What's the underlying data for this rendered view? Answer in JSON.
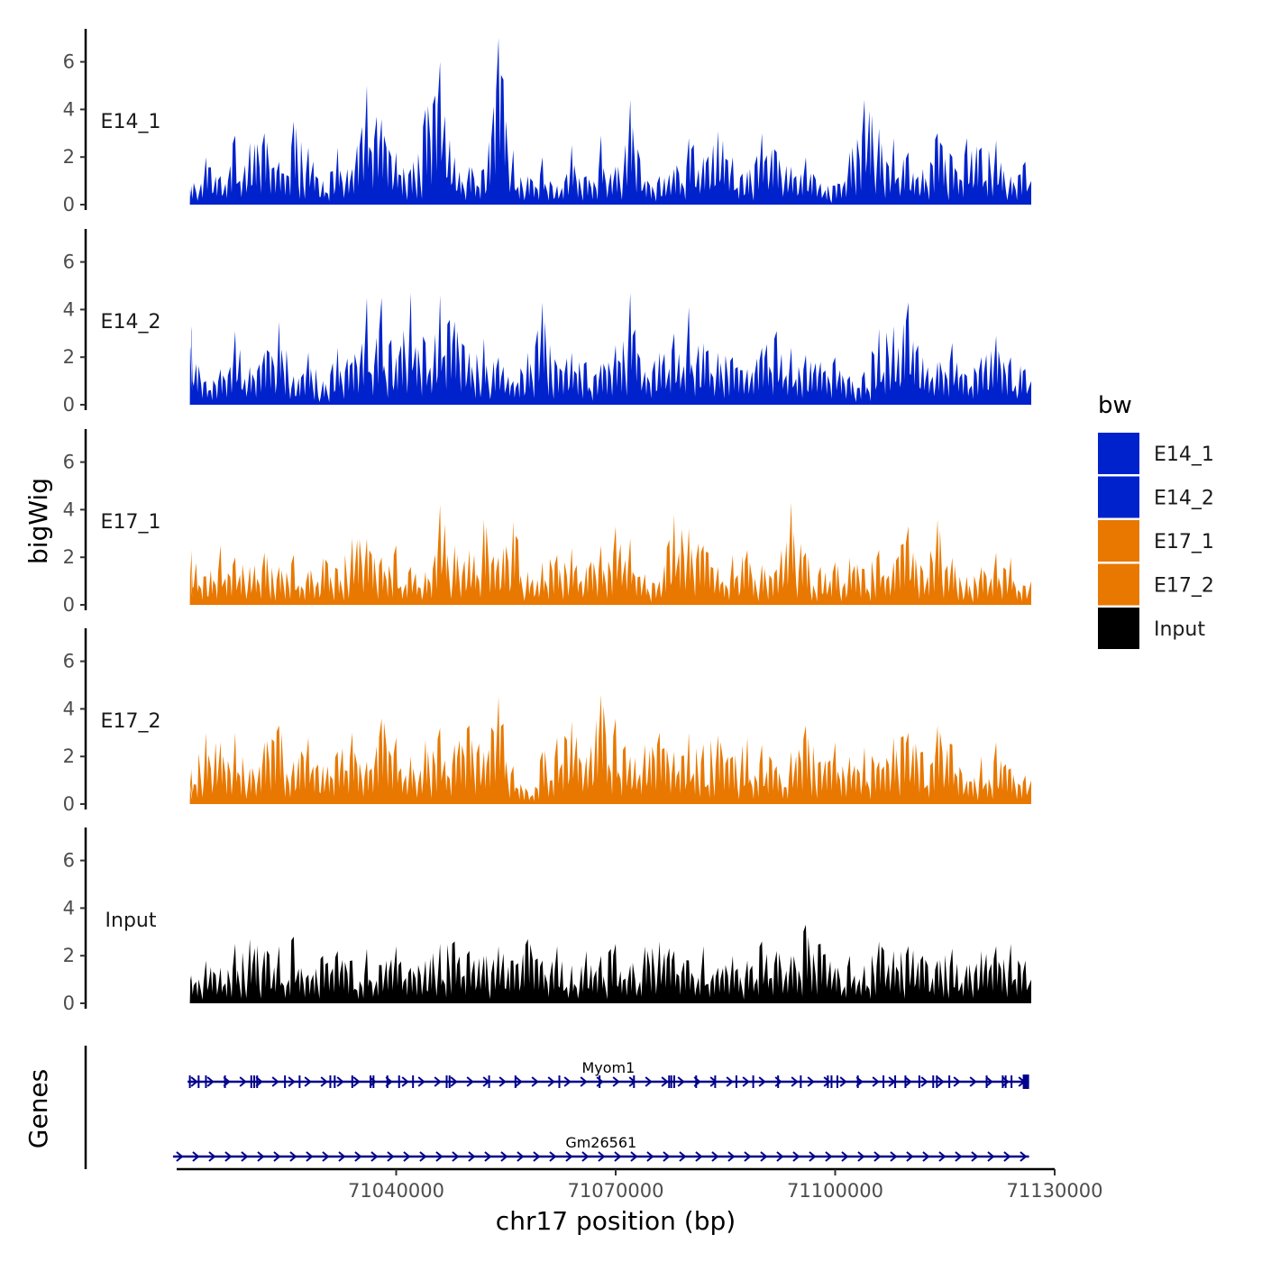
{
  "chart_data": {
    "type": "area",
    "title": "",
    "xlabel": "chr17 position (bp)",
    "ylabel": "bigWig",
    "genes_label": "Genes",
    "xlim": [
      71010000,
      71130000
    ],
    "x_ticks": [
      71040000,
      71070000,
      71100000,
      71130000
    ],
    "x_tick_labels": [
      "71040000",
      "71070000",
      "71100000",
      "71130000"
    ],
    "ylim": [
      0,
      7
    ],
    "y_ticks": [
      0,
      2,
      4,
      6
    ],
    "y_tick_labels": [
      "0",
      "2",
      "4",
      "6"
    ],
    "grid": false,
    "legend": {
      "title": "bw",
      "position": "right",
      "entries": [
        {
          "label": "E14_1",
          "color": "#0022CC"
        },
        {
          "label": "E14_2",
          "color": "#0022CC"
        },
        {
          "label": "E17_1",
          "color": "#E87800"
        },
        {
          "label": "E17_2",
          "color": "#E87800"
        },
        {
          "label": "Input",
          "color": "#000000"
        }
      ]
    },
    "series": [
      {
        "name": "E14_1",
        "color": "#0022CC",
        "x": [
          71012000,
          71014000,
          71016000,
          71018000,
          71020000,
          71022000,
          71024000,
          71026000,
          71028000,
          71030000,
          71032000,
          71034000,
          71036000,
          71038000,
          71040000,
          71042000,
          71044000,
          71046000,
          71048000,
          71050000,
          71052000,
          71054000,
          71056000,
          71058000,
          71060000,
          71062000,
          71064000,
          71066000,
          71068000,
          71070000,
          71072000,
          71074000,
          71076000,
          71078000,
          71080000,
          71082000,
          71084000,
          71086000,
          71088000,
          71090000,
          71092000,
          71094000,
          71096000,
          71098000,
          71100000,
          71102000,
          71104000,
          71106000,
          71108000,
          71110000,
          71112000,
          71114000,
          71116000,
          71118000,
          71120000,
          71122000,
          71124000,
          71126000
        ],
        "values": [
          0.8,
          2.0,
          1.2,
          2.9,
          2.6,
          3.0,
          1.8,
          3.5,
          2.4,
          1.0,
          2.4,
          1.5,
          5.0,
          3.6,
          2.2,
          1.5,
          4.0,
          6.0,
          2.0,
          1.6,
          1.5,
          7.0,
          2.3,
          1.2,
          2.0,
          0.8,
          2.5,
          1.2,
          2.9,
          1.6,
          4.4,
          1.0,
          1.2,
          1.5,
          2.8,
          2.0,
          3.1,
          2.0,
          1.4,
          3.0,
          2.2,
          1.6,
          2.0,
          0.9,
          0.8,
          2.2,
          4.4,
          3.2,
          2.8,
          2.2,
          1.5,
          3.0,
          2.0,
          2.8,
          2.4,
          2.7,
          1.2,
          1.8
        ]
      },
      {
        "name": "E14_2",
        "color": "#0022CC",
        "x": [
          71012000,
          71014000,
          71016000,
          71018000,
          71020000,
          71022000,
          71024000,
          71026000,
          71028000,
          71030000,
          71032000,
          71034000,
          71036000,
          71038000,
          71040000,
          71042000,
          71044000,
          71046000,
          71048000,
          71050000,
          71052000,
          71054000,
          71056000,
          71058000,
          71060000,
          71062000,
          71064000,
          71066000,
          71068000,
          71070000,
          71072000,
          71074000,
          71076000,
          71078000,
          71080000,
          71082000,
          71084000,
          71086000,
          71088000,
          71090000,
          71092000,
          71094000,
          71096000,
          71098000,
          71100000,
          71102000,
          71104000,
          71106000,
          71108000,
          71110000,
          71112000,
          71114000,
          71116000,
          71118000,
          71120000,
          71122000,
          71124000,
          71126000
        ],
        "values": [
          3.3,
          1.0,
          1.5,
          3.1,
          1.6,
          2.2,
          3.5,
          1.2,
          2.2,
          1.0,
          2.4,
          1.8,
          4.5,
          4.5,
          2.0,
          4.7,
          2.6,
          4.6,
          3.5,
          2.2,
          2.8,
          2.0,
          1.0,
          2.2,
          4.3,
          1.6,
          2.2,
          1.8,
          1.7,
          2.5,
          4.7,
          1.4,
          2.2,
          3.0,
          4.1,
          2.6,
          2.2,
          2.0,
          1.5,
          2.4,
          3.1,
          2.4,
          2.1,
          1.8,
          2.0,
          1.2,
          1.4,
          3.2,
          3.3,
          4.3,
          2.0,
          1.8,
          2.6,
          1.2,
          2.0,
          2.9,
          2.0,
          1.5
        ]
      },
      {
        "name": "E17_1",
        "color": "#E87800",
        "x": [
          71012000,
          71014000,
          71016000,
          71018000,
          71020000,
          71022000,
          71024000,
          71026000,
          71028000,
          71030000,
          71032000,
          71034000,
          71036000,
          71038000,
          71040000,
          71042000,
          71044000,
          71046000,
          71048000,
          71050000,
          71052000,
          71054000,
          71056000,
          71058000,
          71060000,
          71062000,
          71064000,
          71066000,
          71068000,
          71070000,
          71072000,
          71074000,
          71076000,
          71078000,
          71080000,
          71082000,
          71084000,
          71086000,
          71088000,
          71090000,
          71092000,
          71094000,
          71096000,
          71098000,
          71100000,
          71102000,
          71104000,
          71106000,
          71108000,
          71110000,
          71112000,
          71114000,
          71116000,
          71118000,
          71120000,
          71122000,
          71124000,
          71126000
        ],
        "values": [
          2.3,
          1.2,
          2.5,
          2.0,
          1.6,
          2.2,
          1.6,
          2.1,
          1.4,
          2.0,
          1.5,
          2.8,
          2.8,
          2.0,
          2.5,
          1.6,
          1.4,
          4.2,
          2.5,
          2.3,
          3.6,
          2.0,
          3.5,
          1.4,
          1.8,
          2.1,
          2.4,
          1.6,
          2.5,
          3.3,
          2.8,
          1.3,
          1.0,
          3.8,
          3.2,
          2.5,
          1.6,
          2.1,
          2.3,
          1.7,
          1.5,
          4.3,
          2.2,
          1.6,
          1.8,
          2.0,
          1.5,
          2.3,
          1.8,
          3.3,
          1.4,
          3.6,
          2.0,
          1.2,
          1.6,
          2.2,
          2.0,
          0.8
        ]
      },
      {
        "name": "E17_2",
        "color": "#E87800",
        "x": [
          71012000,
          71014000,
          71016000,
          71018000,
          71020000,
          71022000,
          71024000,
          71026000,
          71028000,
          71030000,
          71032000,
          71034000,
          71036000,
          71038000,
          71040000,
          71042000,
          71044000,
          71046000,
          71048000,
          71050000,
          71052000,
          71054000,
          71056000,
          71058000,
          71060000,
          71062000,
          71064000,
          71066000,
          71068000,
          71070000,
          71072000,
          71074000,
          71076000,
          71078000,
          71080000,
          71082000,
          71084000,
          71086000,
          71088000,
          71090000,
          71092000,
          71094000,
          71096000,
          71098000,
          71100000,
          71102000,
          71104000,
          71106000,
          71108000,
          71110000,
          71112000,
          71114000,
          71116000,
          71118000,
          71120000,
          71122000,
          71124000,
          71126000
        ],
        "values": [
          1.5,
          3.0,
          2.6,
          3.0,
          1.5,
          2.6,
          3.3,
          1.8,
          2.8,
          1.6,
          2.2,
          3.0,
          1.8,
          3.6,
          2.8,
          2.0,
          2.7,
          3.2,
          2.5,
          3.3,
          2.2,
          4.5,
          1.6,
          0.5,
          2.2,
          2.8,
          3.5,
          2.0,
          4.6,
          3.6,
          2.0,
          2.5,
          3.0,
          2.2,
          3.0,
          2.5,
          2.9,
          2.0,
          2.8,
          2.5,
          1.6,
          2.2,
          3.3,
          1.8,
          2.6,
          2.0,
          2.4,
          1.8,
          2.8,
          3.0,
          2.2,
          3.3,
          2.5,
          1.0,
          2.0,
          2.6,
          1.5,
          1.2
        ]
      },
      {
        "name": "Input",
        "color": "#000000",
        "x": [
          71012000,
          71014000,
          71016000,
          71018000,
          71020000,
          71022000,
          71024000,
          71026000,
          71028000,
          71030000,
          71032000,
          71034000,
          71036000,
          71038000,
          71040000,
          71042000,
          71044000,
          71046000,
          71048000,
          71050000,
          71052000,
          71054000,
          71056000,
          71058000,
          71060000,
          71062000,
          71064000,
          71066000,
          71068000,
          71070000,
          71072000,
          71074000,
          71076000,
          71078000,
          71080000,
          71082000,
          71084000,
          71086000,
          71088000,
          71090000,
          71092000,
          71094000,
          71096000,
          71098000,
          71100000,
          71102000,
          71104000,
          71106000,
          71108000,
          71110000,
          71112000,
          71114000,
          71116000,
          71118000,
          71120000,
          71122000,
          71124000,
          71126000
        ],
        "values": [
          1.2,
          1.8,
          1.5,
          2.5,
          2.7,
          2.2,
          2.4,
          2.8,
          1.2,
          2.0,
          2.2,
          1.8,
          2.3,
          1.6,
          2.4,
          1.5,
          1.8,
          2.5,
          2.6,
          2.2,
          2.0,
          2.4,
          1.8,
          2.7,
          1.8,
          2.4,
          1.6,
          2.2,
          2.0,
          2.5,
          1.6,
          2.4,
          2.6,
          2.2,
          1.8,
          2.4,
          1.5,
          2.0,
          1.8,
          2.6,
          2.2,
          2.0,
          3.3,
          2.5,
          1.5,
          2.0,
          1.6,
          2.6,
          2.2,
          2.4,
          2.0,
          1.8,
          2.3,
          1.6,
          2.2,
          2.4,
          2.5,
          1.8
        ]
      }
    ],
    "genes": [
      {
        "name": "Myom1",
        "strand": "+",
        "start": 71011500,
        "end": 71126500,
        "exons": [
          71011800,
          71013000,
          71014000,
          71016600,
          71020200,
          71020600,
          71021000,
          71024800,
          71026800,
          71031000,
          71031600,
          71034000,
          71036500,
          71036900,
          71038800,
          71040400,
          71042300,
          71046900,
          71047300,
          71052700,
          71056300,
          71062300,
          71067800,
          71072500,
          71077300,
          71077600,
          71078000,
          71081000,
          71083600,
          71086500,
          71088800,
          71092200,
          71095300,
          71099000,
          71099500,
          71100300,
          71103100,
          71106600,
          71108200,
          71109600,
          71111500,
          71113400,
          71113900,
          71115600,
          71120700,
          71122900,
          71123300,
          71124100,
          71126200
        ]
      },
      {
        "name": "Gm26561",
        "strand": "+",
        "start": 71009500,
        "end": 71126500,
        "exons": []
      }
    ]
  }
}
